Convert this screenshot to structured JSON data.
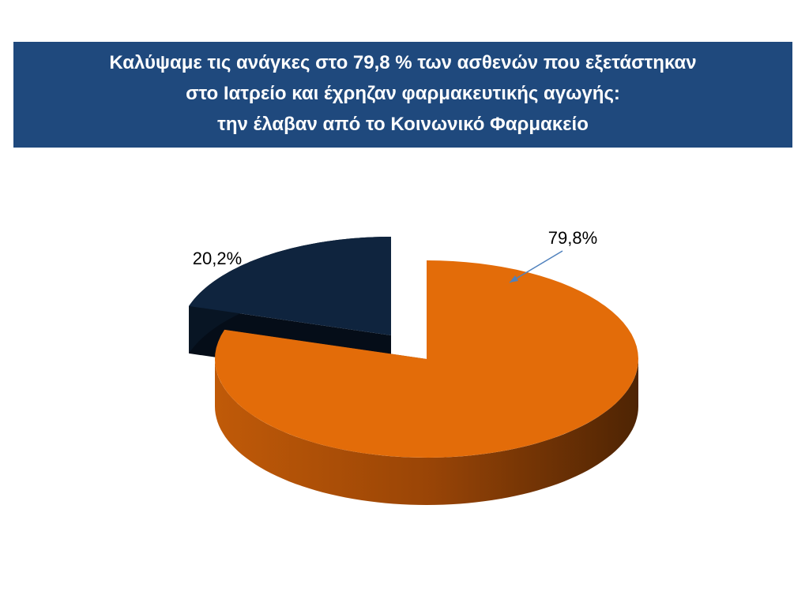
{
  "chart_data": {
    "type": "pie",
    "title": [
      "Καλύψαμε τις ανάγκες στο 79,8 % των ασθενών που εξετάστηκαν",
      "στο Ιατρείο και έχρηζαν φαρμακευτικής αγωγής:",
      "την έλαβαν από το Κοινωνικό Φαρμακείο"
    ],
    "values": [
      79.8,
      20.2
    ],
    "value_labels": [
      "79,8%",
      "20,2%"
    ],
    "colors": [
      "#e36c09",
      "#0f243e"
    ]
  }
}
